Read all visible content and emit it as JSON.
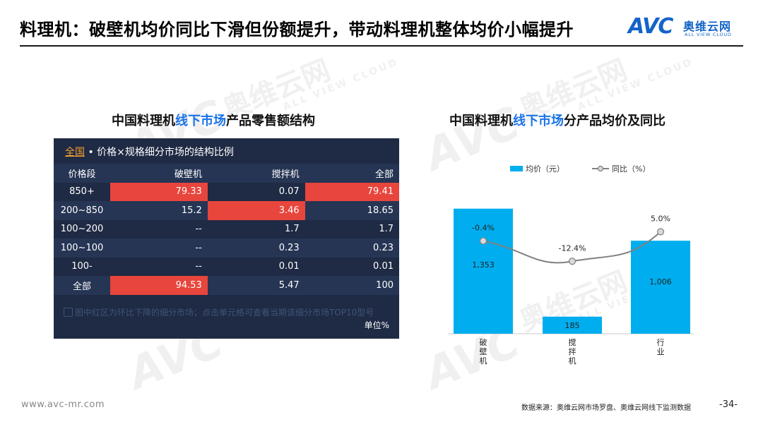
{
  "title": "料理机：破壁机均价同比下滑但份额提升，带动料理机整体均价小幅提升",
  "brand": {
    "mark": "AVC",
    "name_cn": "奥维云网",
    "name_en": "ALL VIEW CLOUD"
  },
  "watermark": {
    "mark": "AVC",
    "cn": "奥维云网",
    "en": "ALL VIEW CLOUD"
  },
  "left_title": {
    "pre": "中国料理机",
    "hl": "线下市场",
    "post": "产品零售额结构"
  },
  "right_title": {
    "pre": "中国料理机",
    "hl": "线下市场",
    "post": "分产品均价及同比"
  },
  "table": {
    "header_scope": "全国",
    "header_text": " • 价格×规格细分市场的结构比例",
    "columns": [
      "价格段",
      "破壁机",
      "搅拌机",
      "全部"
    ],
    "rows": [
      [
        "850+",
        "79.33",
        "0.07",
        "79.41"
      ],
      [
        "200~850",
        "15.2",
        "3.46",
        "18.65"
      ],
      [
        "100~200",
        "--",
        "1.7",
        "1.7"
      ],
      [
        "100~100",
        "--",
        "0.23",
        "0.23"
      ],
      [
        "100-",
        "--",
        "0.01",
        "0.01"
      ],
      [
        "全部",
        "94.53",
        "5.47",
        "100"
      ]
    ],
    "highlight_color": "#e8453c",
    "note": "图中红区为环比下降的细分市场；点击单元格可查看当期该细分市场TOP10型号",
    "unit": "单位%"
  },
  "chart_data": {
    "type": "bar",
    "categories": [
      "破壁机",
      "搅拌机",
      "行业"
    ],
    "series": [
      {
        "name": "均价（元）",
        "type": "bar",
        "values": [
          1353,
          185,
          1006
        ],
        "labels": [
          "1,353",
          "185",
          "1,006"
        ],
        "color": "#00aeef"
      },
      {
        "name": "同比（%）",
        "type": "line",
        "values": [
          -0.4,
          -12.4,
          5.0
        ],
        "labels": [
          "-0.4%",
          "-12.4%",
          "5.0%"
        ],
        "color": "#808080"
      }
    ],
    "legend": "top",
    "grid": false
  },
  "footer": {
    "url": "www.avc-mr.com",
    "source": "数据来源：奥维云网市场罗盘、奥维云网线下监测数据",
    "page": "-34-"
  }
}
